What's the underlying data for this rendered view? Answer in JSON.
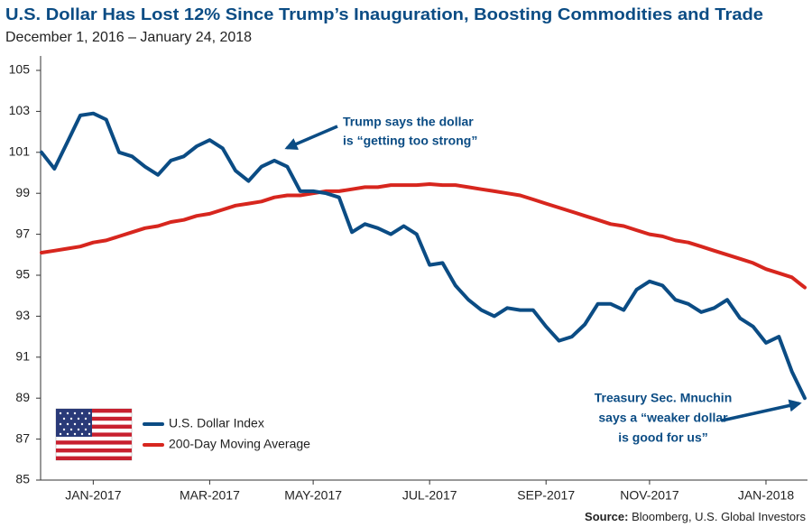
{
  "chart_data": {
    "type": "line",
    "title": "U.S. Dollar Has Lost 12% Since Trump’s Inauguration, Boosting Commodities and Trade",
    "subtitle": "December 1, 2016 – January 24, 2018",
    "categories": [
      null,
      null,
      null,
      null,
      "JAN-2017",
      null,
      null,
      null,
      null,
      null,
      null,
      null,
      null,
      "MAR-2017",
      null,
      null,
      null,
      null,
      null,
      null,
      null,
      "MAY-2017",
      null,
      null,
      null,
      null,
      null,
      null,
      null,
      null,
      "JUL-2017",
      null,
      null,
      null,
      null,
      null,
      null,
      null,
      null,
      "SEP-2017",
      null,
      null,
      null,
      null,
      null,
      null,
      null,
      "NOV-2017",
      null,
      null,
      null,
      null,
      null,
      null,
      null,
      null,
      "JAN-2018",
      null,
      null,
      null
    ],
    "series": [
      {
        "name": "U.S. Dollar Index",
        "color": "#0b4c84",
        "values": [
          101.0,
          100.2,
          101.5,
          102.8,
          102.9,
          102.6,
          101.0,
          100.8,
          100.3,
          99.9,
          100.6,
          100.8,
          101.3,
          101.6,
          101.2,
          100.1,
          99.6,
          100.3,
          100.6,
          100.3,
          99.1,
          99.1,
          99.0,
          98.8,
          97.1,
          97.5,
          97.3,
          97.0,
          97.4,
          97.0,
          95.5,
          95.6,
          94.5,
          93.8,
          93.3,
          93.0,
          93.4,
          93.3,
          93.3,
          92.5,
          91.8,
          92.0,
          92.6,
          93.6,
          93.6,
          93.3,
          94.3,
          94.7,
          94.5,
          93.8,
          93.6,
          93.2,
          93.4,
          93.8,
          92.9,
          92.5,
          91.7,
          92.0,
          90.3,
          89.0
        ]
      },
      {
        "name": "200-Day Moving Average",
        "color": "#d7261e",
        "values": [
          96.1,
          96.2,
          96.3,
          96.4,
          96.6,
          96.7,
          96.9,
          97.1,
          97.3,
          97.4,
          97.6,
          97.7,
          97.9,
          98.0,
          98.2,
          98.4,
          98.5,
          98.6,
          98.8,
          98.9,
          98.9,
          99.0,
          99.1,
          99.1,
          99.2,
          99.3,
          99.3,
          99.4,
          99.4,
          99.4,
          99.45,
          99.4,
          99.4,
          99.3,
          99.2,
          99.1,
          99.0,
          98.9,
          98.7,
          98.5,
          98.3,
          98.1,
          97.9,
          97.7,
          97.5,
          97.4,
          97.2,
          97.0,
          96.9,
          96.7,
          96.6,
          96.4,
          96.2,
          96.0,
          95.8,
          95.6,
          95.3,
          95.1,
          94.9,
          94.4
        ]
      }
    ],
    "ylim": [
      85,
      105.7
    ],
    "yticks": [
      85,
      87,
      89,
      91,
      93,
      95,
      97,
      99,
      101,
      103,
      105
    ],
    "grid": false,
    "annotations": [
      {
        "lines": [
          "Trump says the dollar",
          "is “getting too strong”"
        ]
      },
      {
        "lines": [
          "Treasury Sec. Mnuchin",
          "says a “weaker dollar",
          "is good for us”"
        ]
      }
    ],
    "source": {
      "label": "Source:",
      "text": "Bloomberg, U.S. Global Investors"
    }
  }
}
